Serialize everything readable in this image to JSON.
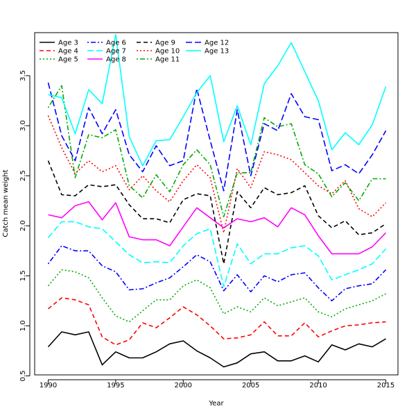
{
  "chart_data": {
    "type": "line",
    "title": "",
    "xlabel": "Year",
    "ylabel": "Catch mean weight",
    "xlim": [
      1989.0,
      2015.9
    ],
    "ylim": [
      0.51,
      3.93
    ],
    "xticks": [
      1990,
      1995,
      2000,
      2005,
      2010,
      2015
    ],
    "yticks": [
      0.5,
      1.0,
      1.5,
      2.0,
      2.5,
      3.0,
      3.5
    ],
    "ytick_labels": [
      "0.5",
      "1.0",
      "1.5",
      "2.0",
      "2.5",
      "3.0",
      "3.5"
    ],
    "grid": false,
    "legend_position": "top-left",
    "x": [
      1990,
      1991,
      1992,
      1993,
      1994,
      1995,
      1996,
      1997,
      1998,
      1999,
      2000,
      2001,
      2002,
      2003,
      2004,
      2005,
      2006,
      2007,
      2008,
      2009,
      2010,
      2011,
      2012,
      2013,
      2014,
      2015
    ],
    "series": [
      {
        "name": "Age 3",
        "color": "#000000",
        "dash": "solid",
        "values": [
          0.79,
          0.94,
          0.91,
          0.94,
          0.61,
          0.74,
          0.68,
          0.68,
          0.74,
          0.82,
          0.85,
          0.75,
          0.68,
          0.59,
          0.63,
          0.72,
          0.74,
          0.65,
          0.65,
          0.7,
          0.64,
          0.81,
          0.76,
          0.82,
          0.79,
          0.87
        ]
      },
      {
        "name": "Age 4",
        "color": "#ff0000",
        "dash": "dashed",
        "values": [
          1.17,
          1.28,
          1.26,
          1.21,
          0.89,
          0.81,
          0.86,
          1.03,
          0.98,
          1.08,
          1.19,
          1.11,
          1.0,
          0.87,
          0.88,
          0.91,
          1.04,
          0.9,
          0.9,
          1.03,
          0.89,
          0.95,
          1.0,
          1.01,
          1.03,
          1.04
        ]
      },
      {
        "name": "Age 5",
        "color": "#00aa00",
        "dash": "dotted",
        "values": [
          1.4,
          1.56,
          1.54,
          1.48,
          1.28,
          1.1,
          1.04,
          1.15,
          1.26,
          1.26,
          1.4,
          1.46,
          1.38,
          1.12,
          1.19,
          1.14,
          1.28,
          1.2,
          1.24,
          1.28,
          1.14,
          1.09,
          1.17,
          1.21,
          1.25,
          1.32
        ]
      },
      {
        "name": "Age 6",
        "color": "#0000ff",
        "dash": "dotdash",
        "values": [
          1.62,
          1.8,
          1.75,
          1.75,
          1.6,
          1.54,
          1.36,
          1.37,
          1.43,
          1.48,
          1.59,
          1.71,
          1.64,
          1.35,
          1.51,
          1.34,
          1.5,
          1.44,
          1.51,
          1.53,
          1.38,
          1.25,
          1.37,
          1.4,
          1.42,
          1.56
        ]
      },
      {
        "name": "Age 7",
        "color": "#00ffff",
        "dash": "longdash",
        "values": [
          1.88,
          2.04,
          2.04,
          1.99,
          1.97,
          1.84,
          1.71,
          1.63,
          1.64,
          1.63,
          1.8,
          1.92,
          1.97,
          1.39,
          1.82,
          1.62,
          1.72,
          1.72,
          1.78,
          1.8,
          1.7,
          1.46,
          1.51,
          1.56,
          1.62,
          1.77
        ]
      },
      {
        "name": "Age 8",
        "color": "#ff00ff",
        "dash": "solid",
        "values": [
          2.11,
          2.08,
          2.2,
          2.24,
          2.06,
          2.23,
          1.89,
          1.86,
          1.86,
          1.8,
          1.99,
          2.18,
          2.08,
          1.98,
          2.07,
          2.04,
          2.08,
          1.99,
          2.18,
          2.11,
          1.9,
          1.72,
          1.72,
          1.72,
          1.79,
          1.93
        ]
      },
      {
        "name": "Age 9",
        "color": "#000000",
        "dash": "dashed",
        "values": [
          2.65,
          2.31,
          2.3,
          2.41,
          2.39,
          2.41,
          2.21,
          2.07,
          2.07,
          2.03,
          2.26,
          2.32,
          2.3,
          1.62,
          2.34,
          2.18,
          2.38,
          2.31,
          2.33,
          2.4,
          2.1,
          1.98,
          2.05,
          1.91,
          1.93,
          2.02
        ]
      },
      {
        "name": "Age 10",
        "color": "#ff0000",
        "dash": "dotted",
        "values": [
          3.1,
          2.78,
          2.52,
          2.65,
          2.54,
          2.6,
          2.36,
          2.5,
          2.35,
          2.24,
          2.45,
          2.61,
          2.48,
          1.93,
          2.57,
          2.38,
          2.74,
          2.71,
          2.66,
          2.53,
          2.4,
          2.32,
          2.45,
          2.17,
          2.09,
          2.23
        ]
      },
      {
        "name": "Age 11",
        "color": "#00aa00",
        "dash": "dotdash",
        "values": [
          3.18,
          3.4,
          2.48,
          2.91,
          2.88,
          2.96,
          2.4,
          2.28,
          2.51,
          2.34,
          2.61,
          2.76,
          2.61,
          2.09,
          2.53,
          2.53,
          3.08,
          2.99,
          3.02,
          2.61,
          2.52,
          2.29,
          2.43,
          2.25,
          2.47,
          2.47
        ]
      },
      {
        "name": "Age 12",
        "color": "#0000ff",
        "dash": "longdash",
        "values": [
          3.43,
          2.9,
          2.65,
          3.18,
          2.92,
          3.16,
          2.71,
          2.54,
          2.8,
          2.6,
          2.65,
          3.37,
          2.85,
          2.35,
          3.16,
          2.5,
          3.02,
          2.95,
          3.32,
          3.09,
          3.06,
          2.55,
          2.61,
          2.52,
          2.71,
          2.95
        ]
      },
      {
        "name": "Age 13",
        "color": "#00ffff",
        "dash": "solid",
        "values": [
          3.31,
          3.28,
          2.92,
          3.36,
          3.22,
          3.91,
          2.89,
          2.6,
          2.85,
          2.86,
          3.09,
          3.33,
          3.5,
          2.84,
          3.2,
          2.81,
          3.42,
          3.6,
          3.83,
          3.54,
          3.25,
          2.76,
          2.93,
          2.81,
          3.01,
          3.39
        ]
      }
    ]
  }
}
